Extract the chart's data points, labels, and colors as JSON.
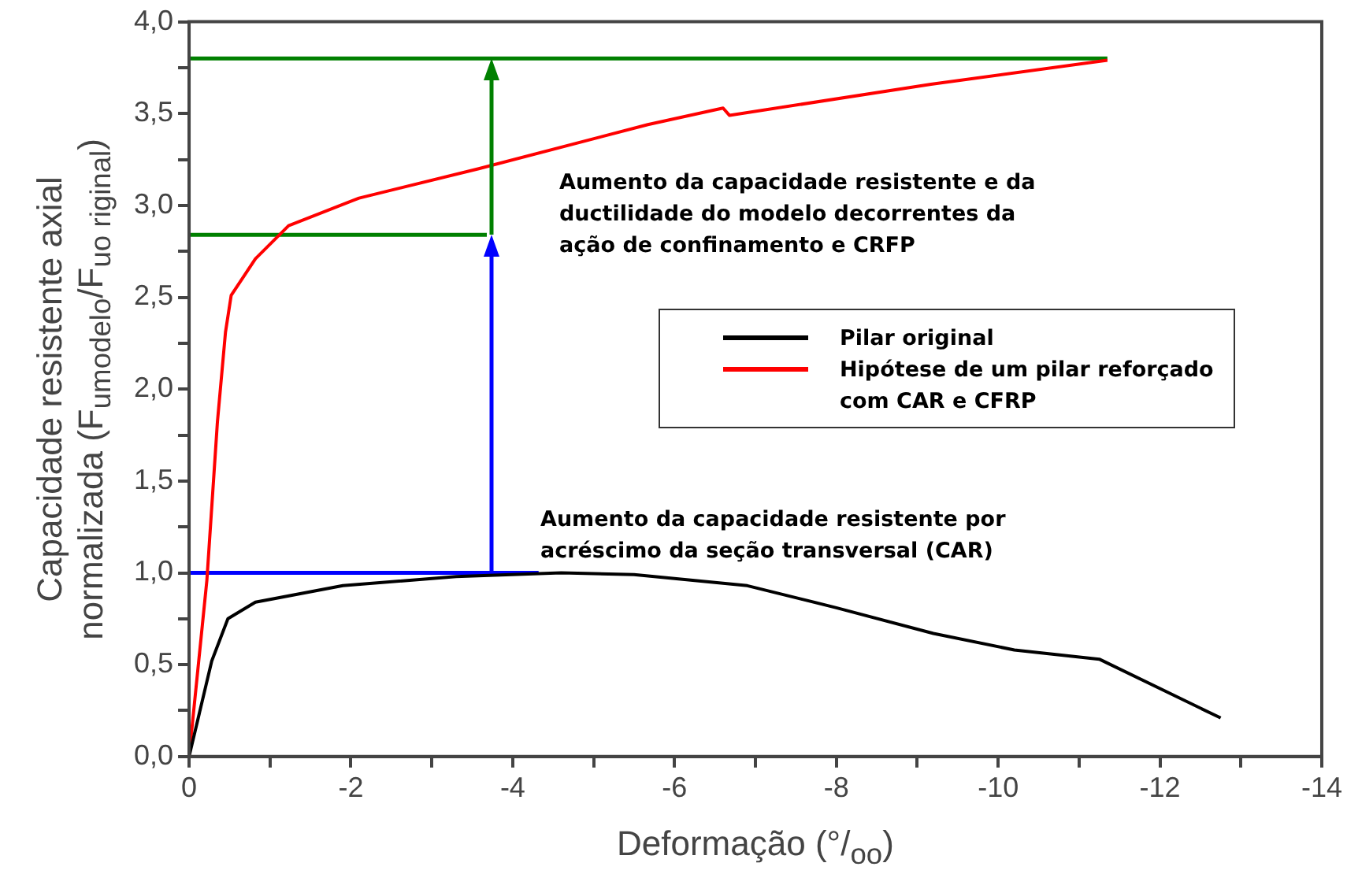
{
  "chart_data": {
    "type": "line",
    "xlabel": "Deformação (°/$_{oo}$)",
    "ylabel": "Capacidade resistente axial\nnormalizada (F$_{umodelo}$/F$_{uo riginal}$)",
    "xlim": [
      0,
      -14
    ],
    "ylim": [
      0,
      4
    ],
    "xticks": [
      0,
      {
        "value": -1,
        "label": null
      },
      {
        "value": -2,
        "label": "-2"
      },
      {
        "value": -3,
        "label": null
      },
      {
        "value": -4,
        "label": "-4"
      },
      {
        "value": -5,
        "label": null
      },
      {
        "value": -6,
        "label": "-6"
      },
      {
        "value": -7,
        "label": null
      },
      {
        "value": -8,
        "label": "-8"
      },
      {
        "value": -9,
        "label": null
      },
      {
        "value": -10,
        "label": "-10"
      },
      {
        "value": -11,
        "label": null
      },
      {
        "value": -12,
        "label": "-12"
      },
      {
        "value": -13,
        "label": null
      },
      {
        "value": -14,
        "label": "-14"
      }
    ],
    "yticks": [
      {
        "value": 0,
        "label": "0,0"
      },
      {
        "value": 0.25,
        "label": null
      },
      {
        "value": 0.5,
        "label": "0,5"
      },
      {
        "value": 0.75,
        "label": null
      },
      {
        "value": 1,
        "label": "1,0"
      },
      {
        "value": 1.25,
        "label": null
      },
      {
        "value": 1.5,
        "label": "1,5"
      },
      {
        "value": 1.75,
        "label": null
      },
      {
        "value": 2,
        "label": "2,0"
      },
      {
        "value": 2.25,
        "label": null
      },
      {
        "value": 2.5,
        "label": "2,5"
      },
      {
        "value": 2.75,
        "label": null
      },
      {
        "value": 3,
        "label": "3,0"
      },
      {
        "value": 3.25,
        "label": null
      },
      {
        "value": 3.5,
        "label": "3,5"
      },
      {
        "value": 3.75,
        "label": null
      },
      {
        "value": 4,
        "label": "4,0"
      }
    ],
    "grid": false,
    "legend": "right",
    "marker": "none",
    "line_style": "solid",
    "series": [
      {
        "name": "Pilar original",
        "color": "#000000",
        "x": [
          0,
          -0.28,
          -0.48,
          -0.82,
          -1.9,
          -3.3,
          -4.6,
          -5.5,
          -6.9,
          -8.0,
          -9.2,
          -10.2,
          -11.25,
          -12.75
        ],
        "values": [
          0,
          0.52,
          0.75,
          0.84,
          0.93,
          0.98,
          1.0,
          0.99,
          0.93,
          0.81,
          0.67,
          0.58,
          0.53,
          0.21
        ]
      },
      {
        "name": "Hipótese de um pilar reforçado com CAR e CFRP",
        "color": "#ff0000",
        "x": [
          0,
          -0.22,
          -0.35,
          -0.45,
          -0.52,
          -0.82,
          -1.23,
          -2.1,
          -3.58,
          -5.67,
          -6.6,
          -6.68,
          -9.17,
          -11.35
        ],
        "values": [
          0,
          0.96,
          1.82,
          2.31,
          2.51,
          2.71,
          2.89,
          3.04,
          3.2,
          3.44,
          3.53,
          3.49,
          3.66,
          3.79
        ]
      },
      {
        "color": "#0000ff",
        "x": [
          0,
          -4.32
        ],
        "values": [
          1.0,
          1.0
        ]
      },
      {
        "color": "#008000",
        "x": [
          0,
          -3.68
        ],
        "values": [
          2.84,
          2.84
        ]
      },
      {
        "color": "#008000",
        "x": [
          0,
          -11.35
        ],
        "values": [
          3.8,
          3.8
        ]
      }
    ],
    "annotations": [
      "Aumento da capacidade resistente e da ductilidade do modelo decorrentes da ação de confinamento e CRFP",
      "Aumento da capacidade resistente por acréscimo da seção transversal (CAR)"
    ]
  }
}
